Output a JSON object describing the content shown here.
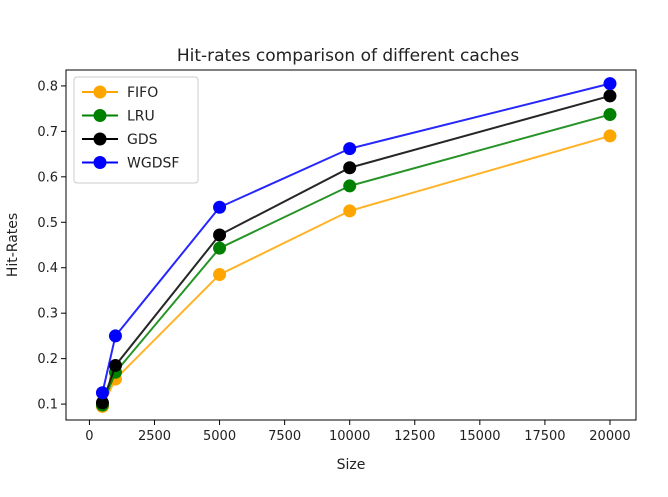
{
  "chart_data": {
    "type": "line",
    "title": "Hit-rates comparison of different caches",
    "xlabel": "Size",
    "ylabel": "Hit-Rates",
    "x": [
      500,
      1000,
      5000,
      10000,
      20000
    ],
    "xlim": [
      -900,
      21000
    ],
    "ylim": [
      0.065,
      0.835
    ],
    "xticks": [
      0,
      2500,
      5000,
      7500,
      10000,
      12500,
      15000,
      17500,
      20000
    ],
    "yticks": [
      0.1,
      0.2,
      0.3,
      0.4,
      0.5,
      0.6,
      0.7,
      0.8
    ],
    "grid": false,
    "legend_position": "top-left",
    "series": [
      {
        "name": "FIFO",
        "color": "#FFA500",
        "values": [
          0.095,
          0.155,
          0.385,
          0.525,
          0.69
        ]
      },
      {
        "name": "LRU",
        "color": "#008000",
        "values": [
          0.098,
          0.17,
          0.443,
          0.58,
          0.737
        ]
      },
      {
        "name": "GDS",
        "color": "#000000",
        "values": [
          0.103,
          0.185,
          0.472,
          0.62,
          0.778
        ]
      },
      {
        "name": "WGDSF",
        "color": "#0000FF",
        "values": [
          0.125,
          0.25,
          0.533,
          0.662,
          0.805
        ]
      }
    ]
  }
}
